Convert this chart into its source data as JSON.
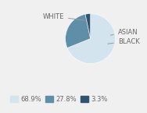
{
  "labels": [
    "WHITE",
    "BLACK",
    "ASIAN"
  ],
  "values": [
    68.9,
    27.8,
    3.3
  ],
  "colors": [
    "#d4e4ef",
    "#5f8fa8",
    "#2e5470"
  ],
  "legend_labels": [
    "68.9%",
    "27.8%",
    "3.3%"
  ],
  "startangle": 90,
  "bg_color": "#f0f0f0",
  "label_fontsize": 6.0,
  "legend_fontsize": 6.0
}
